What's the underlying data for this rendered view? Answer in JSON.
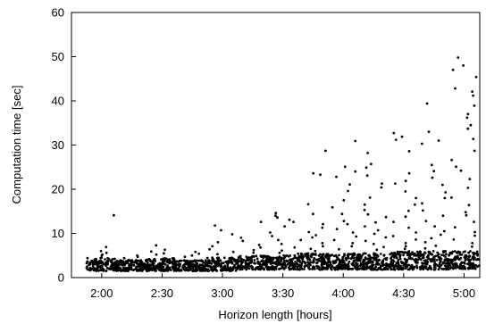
{
  "chart_data": {
    "type": "scatter",
    "title": "",
    "xlabel": "Horizon length [hours]",
    "ylabel": "Computation time [sec]",
    "ylim": [
      0,
      60
    ],
    "yticks": [
      0,
      10,
      20,
      30,
      40,
      50,
      60
    ],
    "ytick_labels": [
      "0",
      "10",
      "20",
      "30",
      "40",
      "50",
      "60"
    ],
    "categories": [
      "2:00",
      "2:30",
      "3:00",
      "3:30",
      "4:00",
      "4:30",
      "5:00"
    ],
    "xticks_hours": [
      2.0,
      2.5,
      3.0,
      3.5,
      4.0,
      4.5,
      5.0
    ],
    "xlim_hours": [
      1.75,
      5.13
    ],
    "grid": false,
    "legend": "none",
    "marker_color": "#000000",
    "groups": [
      {
        "horizon_hours": 2.0,
        "typical_range": [
          1.5,
          4.5
        ],
        "outliers": [
          14.1,
          6.9,
          6.0,
          5.6,
          5.2,
          5.0
        ]
      },
      {
        "horizon_hours": 2.25,
        "typical_range": [
          1.5,
          4.0
        ],
        "outliers": [
          5.0,
          4.7,
          4.4
        ]
      },
      {
        "horizon_hours": 2.5,
        "typical_range": [
          1.5,
          4.5
        ],
        "outliers": [
          7.3,
          6.3,
          5.9,
          5.5,
          5.2
        ]
      },
      {
        "horizon_hours": 2.75,
        "typical_range": [
          1.5,
          4.0
        ],
        "outliers": [
          5.8,
          5.4,
          5.0,
          4.7
        ]
      },
      {
        "horizon_hours": 3.0,
        "typical_range": [
          1.5,
          4.5
        ],
        "outliers": [
          11.8,
          10.7,
          9.8,
          8.0,
          7.1,
          6.4,
          5.8,
          5.3
        ]
      },
      {
        "horizon_hours": 3.25,
        "typical_range": [
          1.8,
          5.0
        ],
        "outliers": [
          12.6,
          9.0,
          8.3,
          7.4,
          6.8,
          6.2,
          5.6
        ]
      },
      {
        "horizon_hours": 3.5,
        "typical_range": [
          1.8,
          5.0
        ],
        "outliers": [
          14.6,
          14.0,
          13.6,
          13.1,
          12.6,
          11.6,
          10.2,
          9.4,
          8.5,
          7.6,
          6.8,
          6.1,
          5.6
        ]
      },
      {
        "horizon_hours": 3.75,
        "typical_range": [
          1.8,
          5.5
        ],
        "outliers": [
          28.7,
          23.6,
          23.3,
          16.6,
          14.4,
          12.1,
          11.3,
          10.3,
          9.6,
          9.1,
          8.5,
          7.8,
          7.1,
          6.5,
          6.0
        ]
      },
      {
        "horizon_hours": 4.0,
        "typical_range": [
          1.8,
          5.5
        ],
        "outliers": [
          30.9,
          25.1,
          24.0,
          22.8,
          21.1,
          19.6,
          17.5,
          15.9,
          14.4,
          12.8,
          12.1,
          11.0,
          10.2,
          9.3,
          8.5,
          7.8,
          7.1,
          6.4
        ]
      },
      {
        "horizon_hours": 4.25,
        "typical_range": [
          1.8,
          5.5
        ],
        "outliers": [
          28.2,
          25.7,
          24.9,
          23.1,
          21.3,
          20.4,
          18.1,
          16.5,
          15.3,
          14.3,
          13.7,
          12.5,
          11.6,
          10.7,
          9.9,
          9.1,
          8.3,
          7.6,
          6.9,
          6.3
        ]
      },
      {
        "horizon_hours": 4.5,
        "typical_range": [
          1.8,
          6.0
        ],
        "outliers": [
          32.7,
          31.9,
          31.2,
          28.6,
          23.6,
          21.9,
          21.3,
          19.5,
          18.0,
          16.5,
          15.1,
          13.8,
          12.6,
          11.3,
          10.2,
          9.4,
          8.6,
          7.8,
          7.1,
          6.5
        ]
      },
      {
        "horizon_hours": 4.75,
        "typical_range": [
          1.8,
          6.0
        ],
        "outliers": [
          39.4,
          33.0,
          31.0,
          30.3,
          25.5,
          24.1,
          22.6,
          21.0,
          19.3,
          18.0,
          16.8,
          15.2,
          14.0,
          12.8,
          11.6,
          10.5,
          9.7,
          8.9,
          8.0,
          7.2,
          6.6
        ]
      },
      {
        "horizon_hours": 5.0,
        "typical_range": [
          2.0,
          6.0
        ],
        "outliers": [
          49.8,
          48.0,
          47.0,
          45.4,
          42.8,
          42.1,
          41.2,
          38.9,
          37.0,
          36.2,
          34.5,
          33.7,
          31.4,
          28.7,
          26.6,
          25.1,
          24.2,
          22.3,
          20.3,
          18.1,
          16.4,
          14.8,
          14.1,
          12.6,
          11.4,
          10.3,
          9.5,
          8.6,
          7.8,
          7.0
        ]
      }
    ]
  }
}
